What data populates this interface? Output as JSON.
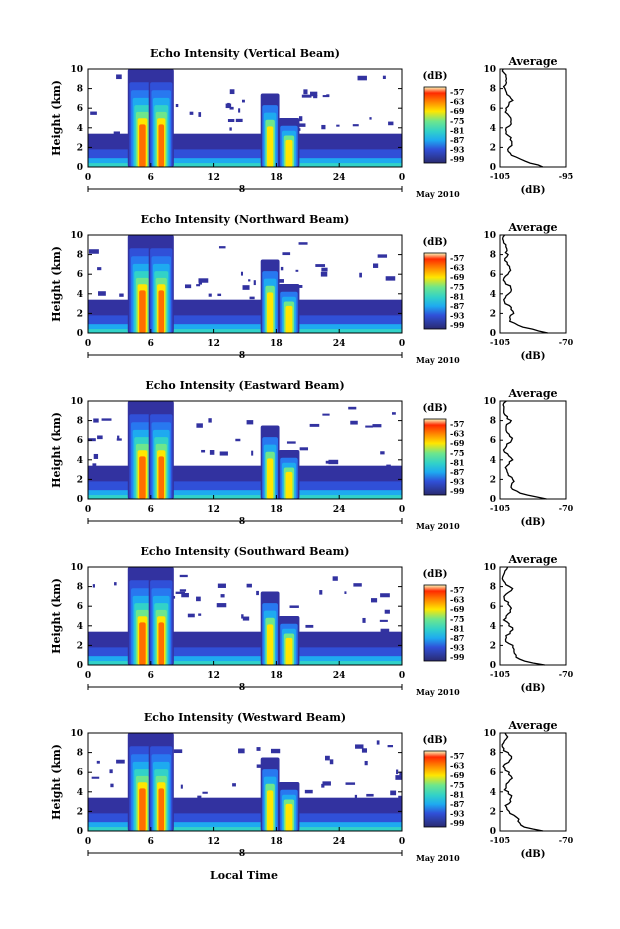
{
  "x_axis_label": "Local Time",
  "date_label": "May 2010",
  "colorbar": {
    "unit_label": "(dB)",
    "ticks": [
      "-57",
      "-63",
      "-69",
      "-75",
      "-81",
      "-87",
      "-93",
      "-99"
    ],
    "colors": [
      "#fcfdbf",
      "#ff2a00",
      "#ff6e00",
      "#ffb000",
      "#ffe600",
      "#c8f03c",
      "#6ee68c",
      "#32d2c8",
      "#1eaaf0",
      "#2878f0",
      "#3050d8",
      "#3232a0",
      "#2a2a70"
    ]
  },
  "chart_data": [
    {
      "type": "heatmap",
      "title": "Echo Intensity (Vertical Beam)",
      "ylabel": "Height (km)",
      "x_ticks": [
        "0",
        "6",
        "12",
        "18",
        "24",
        "0"
      ],
      "y_ticks": [
        "0",
        "2",
        "4",
        "6",
        "8",
        "10"
      ],
      "day_label": "8",
      "xlim": [
        0,
        30
      ],
      "ylim": [
        0,
        10
      ],
      "profile": {
        "title": "Average",
        "xlabel": "(dB)",
        "x_ticks": [
          "-105",
          "-95"
        ],
        "y_ticks": [
          "0",
          "2",
          "4",
          "6",
          "8",
          "10"
        ]
      }
    },
    {
      "type": "heatmap",
      "title": "Echo Intensity (Northward Beam)",
      "ylabel": "Height (km)",
      "x_ticks": [
        "0",
        "6",
        "12",
        "18",
        "24",
        "0"
      ],
      "y_ticks": [
        "0",
        "2",
        "4",
        "6",
        "8",
        "10"
      ],
      "day_label": "8",
      "xlim": [
        0,
        30
      ],
      "ylim": [
        0,
        10
      ],
      "profile": {
        "title": "Average",
        "xlabel": "(dB)",
        "x_ticks": [
          "-105",
          "-70"
        ],
        "y_ticks": [
          "0",
          "2",
          "4",
          "6",
          "8",
          "10"
        ]
      }
    },
    {
      "type": "heatmap",
      "title": "Echo Intensity (Eastward Beam)",
      "ylabel": "Height (km)",
      "x_ticks": [
        "0",
        "6",
        "12",
        "18",
        "24",
        "0"
      ],
      "y_ticks": [
        "0",
        "2",
        "4",
        "6",
        "8",
        "10"
      ],
      "day_label": "8",
      "xlim": [
        0,
        30
      ],
      "ylim": [
        0,
        10
      ],
      "profile": {
        "title": "Average",
        "xlabel": "(dB)",
        "x_ticks": [
          "-105",
          "-70"
        ],
        "y_ticks": [
          "0",
          "2",
          "4",
          "6",
          "8",
          "10"
        ]
      }
    },
    {
      "type": "heatmap",
      "title": "Echo Intensity (Southward Beam)",
      "ylabel": "Height (km)",
      "x_ticks": [
        "0",
        "6",
        "12",
        "18",
        "24",
        "0"
      ],
      "y_ticks": [
        "0",
        "2",
        "4",
        "6",
        "8",
        "10"
      ],
      "day_label": "8",
      "xlim": [
        0,
        30
      ],
      "ylim": [
        0,
        10
      ],
      "profile": {
        "title": "Average",
        "xlabel": "(dB)",
        "x_ticks": [
          "-105",
          "-70"
        ],
        "y_ticks": [
          "0",
          "2",
          "4",
          "6",
          "8",
          "10"
        ]
      }
    },
    {
      "type": "heatmap",
      "title": "Echo Intensity (Westward Beam)",
      "ylabel": "Height (km)",
      "x_ticks": [
        "0",
        "6",
        "12",
        "18",
        "24",
        "0"
      ],
      "y_ticks": [
        "0",
        "2",
        "4",
        "6",
        "8",
        "10"
      ],
      "day_label": "8",
      "xlim": [
        0,
        30
      ],
      "ylim": [
        0,
        10
      ],
      "profile": {
        "title": "Average",
        "xlabel": "(dB)",
        "x_ticks": [
          "-105",
          "-70"
        ],
        "y_ticks": [
          "0",
          "2",
          "4",
          "6",
          "8",
          "10"
        ]
      }
    }
  ]
}
